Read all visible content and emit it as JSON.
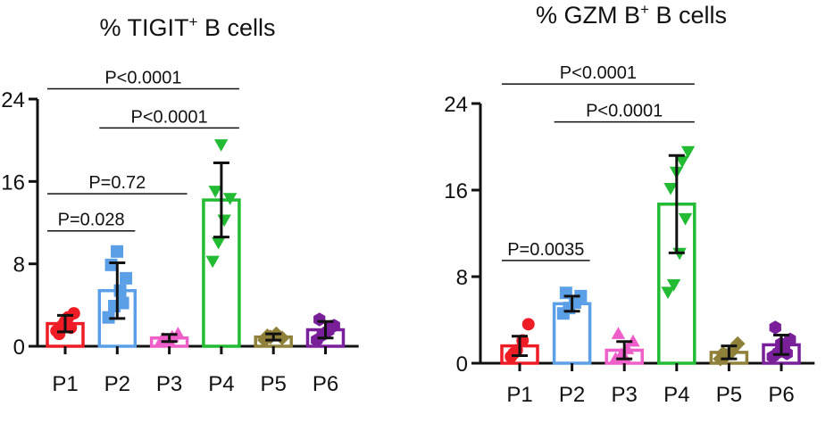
{
  "chart_data": [
    {
      "type": "bar",
      "title": "% TIGIT",
      "title_sup": "+",
      "title_suffix": " B cells",
      "categories": [
        "P1",
        "P2",
        "P3",
        "P4",
        "P5",
        "P6"
      ],
      "yticks": [
        "0",
        "8",
        "16",
        "24"
      ],
      "ylim": [
        0,
        24
      ],
      "means": [
        2.2,
        5.4,
        0.8,
        14.2,
        0.9,
        1.6
      ],
      "sd": [
        0.8,
        2.7,
        0.35,
        3.6,
        0.3,
        0.8
      ],
      "colors": [
        "#ee1c25",
        "#5b9fe6",
        "#ee5fc9",
        "#22bb33",
        "#8f803a",
        "#7a1f9a"
      ],
      "markers": [
        "circle",
        "square",
        "triangle-up",
        "triangle-down",
        "diamond",
        "hexagon"
      ],
      "points": [
        [
          1.5,
          2.0,
          2.8,
          3.2,
          1.2,
          2.4,
          1.8
        ],
        [
          2.8,
          3.9,
          5.4,
          6.6,
          7.9,
          9.2,
          4.2
        ],
        [
          0.4,
          0.6,
          0.9,
          1.2,
          0.7,
          0.5
        ],
        [
          8.3,
          10.1,
          12.3,
          14.4,
          15.1,
          19.6
        ],
        [
          0.6,
          0.9,
          1.2,
          0.8,
          1.0
        ],
        [
          0.6,
          1.1,
          1.5,
          2.0,
          2.6,
          1.3,
          1.9
        ]
      ],
      "comparisons": [
        {
          "from": "P1",
          "to": "P4",
          "label": "P<0.0001",
          "y": 25.0
        },
        {
          "from": "P2",
          "to": "P4",
          "label": "P<0.0001",
          "y": 21.2
        },
        {
          "from": "P1",
          "to": "P3",
          "label": "P=0.72",
          "y": 14.8
        },
        {
          "from": "P1",
          "to": "P2",
          "label": "P=0.028",
          "y": 11.2
        }
      ]
    },
    {
      "type": "bar",
      "title": "% GZM B",
      "title_sup": "+",
      "title_suffix": " B cells",
      "categories": [
        "P1",
        "P2",
        "P3",
        "P4",
        "P5",
        "P6"
      ],
      "yticks": [
        "0",
        "8",
        "16",
        "24"
      ],
      "ylim": [
        0,
        24
      ],
      "means": [
        1.6,
        5.5,
        1.2,
        14.7,
        1.0,
        1.7
      ],
      "sd": [
        0.9,
        0.7,
        0.8,
        4.5,
        0.6,
        0.9
      ],
      "colors": [
        "#ee1c25",
        "#5b9fe6",
        "#ee5fc9",
        "#22bb33",
        "#8f803a",
        "#7a1f9a"
      ],
      "markers": [
        "circle",
        "square",
        "triangle-up",
        "triangle-down",
        "diamond",
        "hexagon"
      ],
      "points": [
        [
          0.6,
          1.2,
          2.1,
          3.6,
          0.9
        ],
        [
          4.6,
          5.1,
          5.6,
          6.2,
          6.5
        ],
        [
          0.4,
          0.8,
          1.3,
          2.0,
          2.7,
          0.6
        ],
        [
          6.6,
          7.3,
          10.2,
          13.4,
          16.2,
          17.7,
          18.7,
          19.6
        ],
        [
          0.4,
          0.7,
          1.1,
          1.8,
          0.9
        ],
        [
          0.6,
          1.0,
          1.5,
          2.2,
          3.3,
          1.8,
          0.9
        ]
      ],
      "comparisons": [
        {
          "from": "P1",
          "to": "P4",
          "label": "P<0.0001",
          "y": 25.8
        },
        {
          "from": "P2",
          "to": "P4",
          "label": "P<0.0001",
          "y": 22.3
        },
        {
          "from": "P1",
          "to": "P2",
          "label": "P=0.0035",
          "y": 9.5
        }
      ]
    }
  ]
}
